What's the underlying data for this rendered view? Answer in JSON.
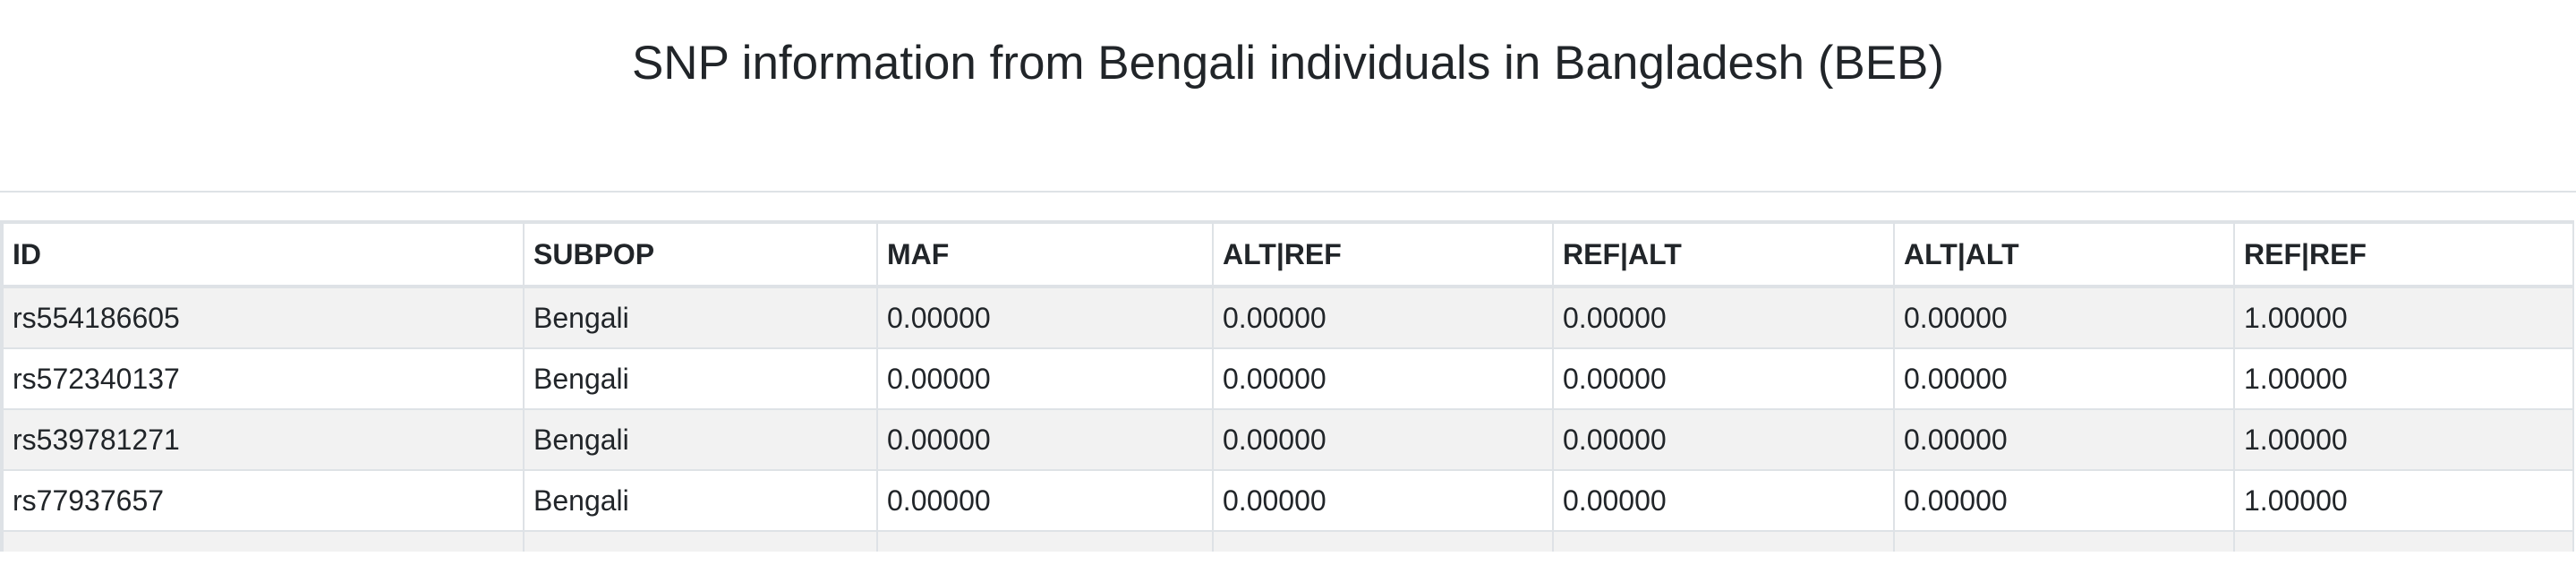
{
  "page": {
    "title": "SNP information from Bengali individuals in Bangladesh (BEB)"
  },
  "table": {
    "columns": [
      "ID",
      "SUBPOP",
      "MAF",
      "ALT|REF",
      "REF|ALT",
      "ALT|ALT",
      "REF|REF"
    ],
    "rows": [
      [
        "rs554186605",
        "Bengali",
        "0.00000",
        "0.00000",
        "0.00000",
        "0.00000",
        "1.00000"
      ],
      [
        "rs572340137",
        "Bengali",
        "0.00000",
        "0.00000",
        "0.00000",
        "0.00000",
        "1.00000"
      ],
      [
        "rs539781271",
        "Bengali",
        "0.00000",
        "0.00000",
        "0.00000",
        "0.00000",
        "1.00000"
      ],
      [
        "rs77937657",
        "Bengali",
        "0.00000",
        "0.00000",
        "0.00000",
        "0.00000",
        "1.00000"
      ],
      [
        "",
        "",
        "",
        "",
        "",
        "",
        ""
      ]
    ]
  },
  "colors": {
    "border": "#dee2e6",
    "stripe": "#f2f2f2",
    "text": "#212529"
  }
}
